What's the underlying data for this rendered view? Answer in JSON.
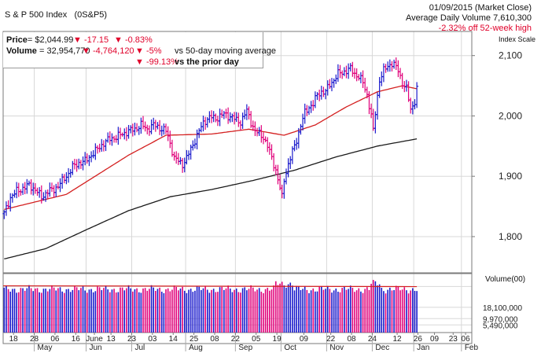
{
  "header": {
    "title": "S & P 500 Index",
    "symbol": "(0S&P5)",
    "date_line": "01/09/2015 (Market Close)",
    "avg_volume_line": "Average Daily Volume 7,610,300",
    "off_high_line": "-2.32% off 52-week high"
  },
  "info": {
    "price_label": "Price",
    "price_value": "= $2,044.99",
    "price_change": "-17.15",
    "price_pct": "-0.83%",
    "volume_label": "Volume",
    "volume_value": "= 32,954,770",
    "volume_change": "-4,764,120",
    "volume_pct_ma": "-5%",
    "volume_ma_text": "vs 50-day moving average",
    "volume_pct_prior": "-99.13%",
    "volume_prior_text": "vs the prior day"
  },
  "colors": {
    "up": "#1a1acc",
    "down": "#e0007a",
    "ma_short": "#d42020",
    "ma_long": "#1a1a1a",
    "grid": "#d8d8d8",
    "border": "#7a7a7a"
  },
  "chart_data": {
    "type": "line",
    "price_panel": {
      "scale_label": "Index Scale",
      "ylim": [
        1740,
        2140
      ],
      "y_ticks": [
        {
          "value": 2100,
          "label": "2,100"
        },
        {
          "value": 2000,
          "label": "2,000"
        },
        {
          "value": 1900,
          "label": "1,900"
        },
        {
          "value": 1800,
          "label": "1,800"
        }
      ],
      "ohlc_close_anchors": [
        [
          0,
          1838
        ],
        [
          3,
          1865
        ],
        [
          6,
          1875
        ],
        [
          9,
          1880
        ],
        [
          12,
          1885
        ],
        [
          15,
          1878
        ],
        [
          18,
          1865
        ],
        [
          21,
          1875
        ],
        [
          24,
          1878
        ],
        [
          27,
          1888
        ],
        [
          30,
          1900
        ],
        [
          33,
          1915
        ],
        [
          36,
          1922
        ],
        [
          39,
          1925
        ],
        [
          42,
          1935
        ],
        [
          45,
          1945
        ],
        [
          48,
          1955
        ],
        [
          51,
          1962
        ],
        [
          54,
          1965
        ],
        [
          57,
          1970
        ],
        [
          60,
          1975
        ],
        [
          63,
          1978
        ],
        [
          66,
          1985
        ],
        [
          69,
          1978
        ],
        [
          72,
          1985
        ],
        [
          75,
          1980
        ],
        [
          78,
          1975
        ],
        [
          80,
          1955
        ],
        [
          82,
          1930
        ],
        [
          84,
          1925
        ],
        [
          86,
          1920
        ],
        [
          88,
          1930
        ],
        [
          90,
          1945
        ],
        [
          92,
          1960
        ],
        [
          94,
          1975
        ],
        [
          96,
          1988
        ],
        [
          98,
          1996
        ],
        [
          100,
          1998
        ],
        [
          102,
          1995
        ],
        [
          104,
          2000
        ],
        [
          106,
          2003
        ],
        [
          108,
          2000
        ],
        [
          110,
          1998
        ],
        [
          112,
          1992
        ],
        [
          114,
          1990
        ],
        [
          116,
          2003
        ],
        [
          117,
          2008
        ],
        [
          119,
          1990
        ],
        [
          121,
          1975
        ],
        [
          123,
          1970
        ],
        [
          125,
          1965
        ],
        [
          127,
          1950
        ],
        [
          129,
          1930
        ],
        [
          131,
          1910
        ],
        [
          133,
          1880
        ],
        [
          134,
          1865
        ],
        [
          135,
          1895
        ],
        [
          137,
          1920
        ],
        [
          139,
          1940
        ],
        [
          141,
          1960
        ],
        [
          143,
          1985
        ],
        [
          145,
          2005
        ],
        [
          147,
          2015
        ],
        [
          149,
          2020
        ],
        [
          151,
          2035
        ],
        [
          153,
          2040
        ],
        [
          155,
          2040
        ],
        [
          157,
          2052
        ],
        [
          159,
          2060
        ],
        [
          161,
          2070
        ],
        [
          163,
          2072
        ],
        [
          165,
          2075
        ],
        [
          167,
          2078
        ],
        [
          169,
          2070
        ],
        [
          171,
          2065
        ],
        [
          173,
          2055
        ],
        [
          175,
          2035
        ],
        [
          177,
          2000
        ],
        [
          178,
          1975
        ],
        [
          179,
          2005
        ],
        [
          181,
          2060
        ],
        [
          183,
          2075
        ],
        [
          185,
          2082
        ],
        [
          187,
          2088
        ],
        [
          188,
          2085
        ],
        [
          190,
          2075
        ],
        [
          192,
          2055
        ],
        [
          194,
          2045
        ],
        [
          196,
          2010
        ],
        [
          198,
          2025
        ],
        [
          199,
          2045
        ]
      ],
      "ma50_anchors": [
        [
          0,
          1845
        ],
        [
          30,
          1870
        ],
        [
          60,
          1935
        ],
        [
          78,
          1968
        ],
        [
          100,
          1970
        ],
        [
          118,
          1978
        ],
        [
          135,
          1968
        ],
        [
          150,
          1985
        ],
        [
          165,
          2015
        ],
        [
          180,
          2040
        ],
        [
          192,
          2050
        ],
        [
          199,
          2045
        ]
      ],
      "ma200_anchors": [
        [
          0,
          1763
        ],
        [
          20,
          1780
        ],
        [
          40,
          1812
        ],
        [
          60,
          1843
        ],
        [
          80,
          1866
        ],
        [
          100,
          1878
        ],
        [
          120,
          1893
        ],
        [
          140,
          1910
        ],
        [
          160,
          1932
        ],
        [
          180,
          1950
        ],
        [
          199,
          1962
        ]
      ],
      "ma50_color": "#d42020",
      "ma200_color": "#1a1a1a"
    },
    "volume_panel": {
      "label": "Volume(00)",
      "ylim": [
        0,
        40000000
      ],
      "y_ticks": [
        {
          "value": 33000000,
          "label": ""
        },
        {
          "value": 18100000,
          "label": "18,100,000"
        },
        {
          "value": 9970000,
          "label": "9,970,000"
        },
        {
          "value": 5490000,
          "label": "5,490,000"
        }
      ],
      "volume_avg_level": 33500000,
      "volume_base_level": 31000000
    },
    "x_axis": {
      "num_sessions": 200,
      "total_slots": 226,
      "day_ticks": [
        {
          "slot": 5,
          "label": "18"
        },
        {
          "slot": 15,
          "label": "28"
        },
        {
          "slot": 25,
          "label": "06"
        },
        {
          "slot": 35,
          "label": "16"
        },
        {
          "slot": 44,
          "label": "June"
        },
        {
          "slot": 52,
          "label": "13"
        },
        {
          "slot": 62,
          "label": "23"
        },
        {
          "slot": 72,
          "label": "03"
        },
        {
          "slot": 82,
          "label": "14"
        },
        {
          "slot": 92,
          "label": "25"
        },
        {
          "slot": 102,
          "label": "08"
        },
        {
          "slot": 112,
          "label": "22"
        },
        {
          "slot": 122,
          "label": "05"
        },
        {
          "slot": 132,
          "label": "19"
        },
        {
          "slot": 145,
          "label": "09"
        },
        {
          "slot": 158,
          "label": "22"
        },
        {
          "slot": 168,
          "label": "08"
        },
        {
          "slot": 178,
          "label": "24"
        },
        {
          "slot": 190,
          "label": "12"
        },
        {
          "slot": 200,
          "label": "26"
        },
        {
          "slot": 208,
          "label": "09"
        },
        {
          "slot": 217,
          "label": "23"
        },
        {
          "slot": 223,
          "label": "06"
        }
      ],
      "month_ticks": [
        {
          "slot": 15,
          "label": "May"
        },
        {
          "slot": 40,
          "label": "Jun"
        },
        {
          "slot": 62,
          "label": "Jul"
        },
        {
          "slot": 88,
          "label": "Aug"
        },
        {
          "slot": 112,
          "label": "Sep"
        },
        {
          "slot": 134,
          "label": "Oct"
        },
        {
          "slot": 156,
          "label": "Nov"
        },
        {
          "slot": 178,
          "label": "Dec"
        },
        {
          "slot": 198,
          "label": "Jan"
        },
        {
          "slot": 221,
          "label": "Feb"
        }
      ]
    }
  }
}
